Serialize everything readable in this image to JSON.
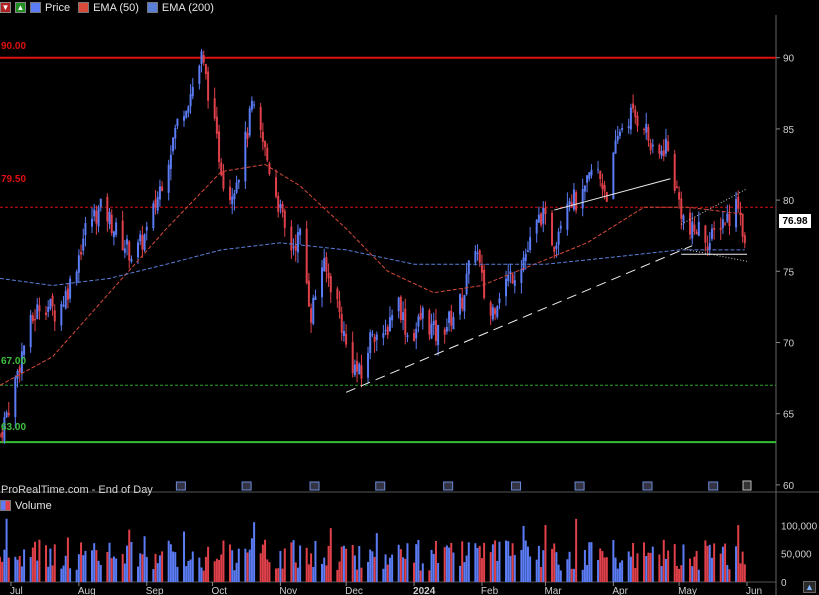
{
  "toolbar": {
    "price_label": "Price",
    "ema50_label": "EMA (50)",
    "ema200_label": "EMA (200)"
  },
  "colors": {
    "up": "#5b7cf5",
    "down": "#e0404a",
    "ema50": "#d84a3a",
    "ema200": "#5a7fd8",
    "level_90": "#e01010",
    "level_79_5": "#d01010",
    "level_67": "#2aa52a",
    "level_63": "#34c034"
  },
  "footer_text": "ProRealTime.com - End of Day",
  "volume_label": "Volume",
  "last_price_label": "76.98",
  "level_labels": {
    "l90": "90.00",
    "l795": "79.50",
    "l67": "67.00",
    "l63": "63.00"
  },
  "chart_data": {
    "type": "candlestick",
    "price_axis": {
      "ticks": [
        "90",
        "85",
        "80",
        "75",
        "70",
        "65",
        "60"
      ],
      "range": [
        59.5,
        93
      ]
    },
    "volume_axis": {
      "ticks": [
        "100,000",
        "50,000",
        "0"
      ]
    },
    "time_axis": {
      "labels": [
        "Jul",
        "Aug",
        "Sep",
        "Oct",
        "Nov",
        "Dec",
        "2024",
        "Feb",
        "Mar",
        "Apr",
        "May",
        "Jun"
      ]
    },
    "horizontal_levels": [
      {
        "value": 90.0,
        "style": "solid",
        "color": "red"
      },
      {
        "value": 79.5,
        "style": "dashed",
        "color": "red"
      },
      {
        "value": 67.0,
        "style": "dashed",
        "color": "green"
      },
      {
        "value": 63.0,
        "style": "solid",
        "color": "green"
      }
    ],
    "last_price": 76.98,
    "close_path": [
      [
        "2023-06-26",
        63.5
      ],
      [
        "2023-07-01",
        66
      ],
      [
        "2023-07-08",
        70.5
      ],
      [
        "2023-07-15",
        73
      ],
      [
        "2023-07-22",
        72
      ],
      [
        "2023-07-29",
        74.5
      ],
      [
        "2023-08-05",
        78.5
      ],
      [
        "2023-08-12",
        79.5
      ],
      [
        "2023-08-19",
        77.5
      ],
      [
        "2023-08-26",
        76
      ],
      [
        "2023-09-02",
        78
      ],
      [
        "2023-09-09",
        82
      ],
      [
        "2023-09-16",
        86
      ],
      [
        "2023-09-21",
        87.5
      ],
      [
        "2023-09-26",
        90
      ],
      [
        "2023-09-30",
        87
      ],
      [
        "2023-10-03",
        84
      ],
      [
        "2023-10-08",
        80
      ],
      [
        "2023-10-14",
        82.5
      ],
      [
        "2023-10-19",
        86.5
      ],
      [
        "2023-10-24",
        84
      ],
      [
        "2023-10-30",
        80.5
      ],
      [
        "2023-11-05",
        76.5
      ],
      [
        "2023-11-10",
        77.5
      ],
      [
        "2023-11-15",
        72
      ],
      [
        "2023-11-20",
        75.5
      ],
      [
        "2023-11-26",
        73.5
      ],
      [
        "2023-12-02",
        69
      ],
      [
        "2023-12-08",
        67.5
      ],
      [
        "2023-12-13",
        71
      ],
      [
        "2023-12-18",
        70
      ],
      [
        "2023-12-24",
        73.5
      ],
      [
        "2023-12-30",
        70
      ],
      [
        "2024-01-05",
        72
      ],
      [
        "2024-01-11",
        70.5
      ],
      [
        "2024-01-17",
        71.5
      ],
      [
        "2024-01-23",
        73
      ],
      [
        "2024-01-29",
        77
      ],
      [
        "2024-02-04",
        71.5
      ],
      [
        "2024-02-10",
        74
      ],
      [
        "2024-02-16",
        75
      ],
      [
        "2024-02-22",
        76.5
      ],
      [
        "2024-02-28",
        79
      ],
      [
        "2024-03-05",
        77
      ],
      [
        "2024-03-11",
        80.5
      ],
      [
        "2024-03-17",
        79.5
      ],
      [
        "2024-03-23",
        82.5
      ],
      [
        "2024-03-29",
        80.5
      ],
      [
        "2024-04-04",
        85
      ],
      [
        "2024-04-09",
        86
      ],
      [
        "2024-04-15",
        85.5
      ],
      [
        "2024-04-20",
        82.5
      ],
      [
        "2024-04-25",
        84
      ],
      [
        "2024-04-30",
        80.5
      ],
      [
        "2024-05-05",
        77.5
      ],
      [
        "2024-05-10",
        78
      ],
      [
        "2024-05-15",
        77
      ],
      [
        "2024-05-20",
        78.5
      ],
      [
        "2024-05-25",
        79
      ],
      [
        "2024-05-28",
        80
      ],
      [
        "2024-05-31",
        76.98
      ]
    ],
    "ema50_path": [
      [
        "2023-06-26",
        67
      ],
      [
        "2023-07-20",
        69
      ],
      [
        "2023-08-15",
        73.5
      ],
      [
        "2023-09-10",
        78
      ],
      [
        "2023-10-05",
        82
      ],
      [
        "2023-10-25",
        82.5
      ],
      [
        "2023-11-10",
        81
      ],
      [
        "2023-12-01",
        78
      ],
      [
        "2023-12-20",
        75
      ],
      [
        "2024-01-10",
        73.5
      ],
      [
        "2024-02-01",
        74
      ],
      [
        "2024-02-25",
        75.5
      ],
      [
        "2024-03-20",
        77
      ],
      [
        "2024-04-15",
        79.5
      ],
      [
        "2024-05-05",
        79.5
      ],
      [
        "2024-05-31",
        79
      ]
    ],
    "ema200_path": [
      [
        "2023-06-26",
        74.5
      ],
      [
        "2023-07-20",
        74
      ],
      [
        "2023-08-15",
        74.5
      ],
      [
        "2023-09-10",
        75.5
      ],
      [
        "2023-10-05",
        76.5
      ],
      [
        "2023-11-01",
        77
      ],
      [
        "2023-12-01",
        76.5
      ],
      [
        "2024-01-01",
        75.5
      ],
      [
        "2024-02-01",
        75.5
      ],
      [
        "2024-03-01",
        75.5
      ],
      [
        "2024-04-01",
        76
      ],
      [
        "2024-05-01",
        76.5
      ],
      [
        "2024-05-31",
        76.5
      ]
    ],
    "trendlines": [
      {
        "from": [
          "2023-12-01",
          66.5
        ],
        "to": [
          "2024-05-07",
          76.8
        ],
        "style": "dashed"
      },
      {
        "from": [
          "2024-03-05",
          79.3
        ],
        "to": [
          "2024-04-27",
          81.5
        ],
        "style": "solid"
      },
      {
        "from": [
          "2024-05-02",
          76.2
        ],
        "to": [
          "2024-06-01",
          76.2
        ],
        "style": "solid"
      }
    ]
  }
}
